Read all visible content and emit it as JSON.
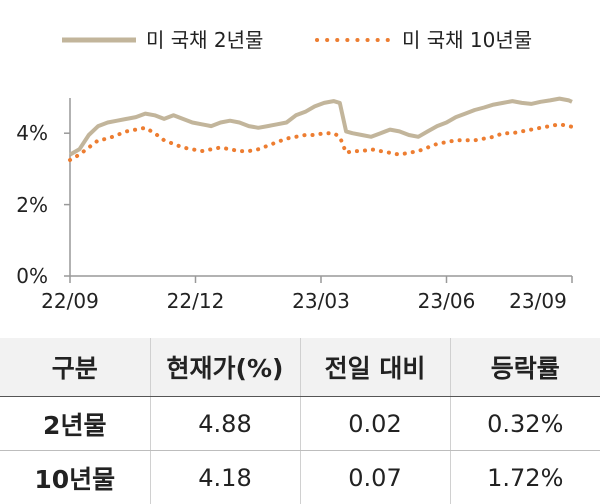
{
  "chart_data": {
    "type": "line",
    "ylim": [
      0,
      5
    ],
    "y_ticks": [
      "0%",
      "2%",
      "4%"
    ],
    "x_ticks": [
      "22/09",
      "22/12",
      "23/03",
      "23/06",
      "23/09"
    ],
    "legend_position": "top",
    "grid": false,
    "series": [
      {
        "name": "미 국채 2년물",
        "style": "solid",
        "color": "#c2b59b",
        "points": [
          [
            0,
            3.4
          ],
          [
            3,
            3.55
          ],
          [
            6,
            3.95
          ],
          [
            9,
            4.2
          ],
          [
            12,
            4.3
          ],
          [
            15,
            4.35
          ],
          [
            18,
            4.4
          ],
          [
            21,
            4.45
          ],
          [
            24,
            4.55
          ],
          [
            27,
            4.5
          ],
          [
            30,
            4.4
          ],
          [
            33,
            4.5
          ],
          [
            36,
            4.4
          ],
          [
            39,
            4.3
          ],
          [
            42,
            4.25
          ],
          [
            45,
            4.2
          ],
          [
            48,
            4.3
          ],
          [
            51,
            4.35
          ],
          [
            54,
            4.3
          ],
          [
            57,
            4.2
          ],
          [
            60,
            4.15
          ],
          [
            63,
            4.2
          ],
          [
            66,
            4.25
          ],
          [
            69,
            4.3
          ],
          [
            72,
            4.5
          ],
          [
            75,
            4.6
          ],
          [
            78,
            4.75
          ],
          [
            81,
            4.85
          ],
          [
            84,
            4.9
          ],
          [
            86,
            4.85
          ],
          [
            88,
            4.05
          ],
          [
            90,
            4.0
          ],
          [
            93,
            3.95
          ],
          [
            96,
            3.9
          ],
          [
            99,
            4.0
          ],
          [
            102,
            4.1
          ],
          [
            105,
            4.05
          ],
          [
            108,
            3.95
          ],
          [
            111,
            3.9
          ],
          [
            114,
            4.05
          ],
          [
            117,
            4.2
          ],
          [
            120,
            4.3
          ],
          [
            123,
            4.45
          ],
          [
            126,
            4.55
          ],
          [
            129,
            4.65
          ],
          [
            132,
            4.72
          ],
          [
            135,
            4.8
          ],
          [
            138,
            4.85
          ],
          [
            141,
            4.9
          ],
          [
            144,
            4.85
          ],
          [
            147,
            4.82
          ],
          [
            150,
            4.88
          ],
          [
            153,
            4.92
          ],
          [
            156,
            4.97
          ],
          [
            159,
            4.92
          ],
          [
            160,
            4.88
          ]
        ]
      },
      {
        "name": "미 국채 10년물",
        "style": "dotted",
        "color": "#ed7d31",
        "points": [
          [
            0,
            3.25
          ],
          [
            3,
            3.4
          ],
          [
            6,
            3.6
          ],
          [
            9,
            3.8
          ],
          [
            12,
            3.85
          ],
          [
            15,
            3.95
          ],
          [
            18,
            4.05
          ],
          [
            21,
            4.1
          ],
          [
            24,
            4.15
          ],
          [
            27,
            4.0
          ],
          [
            30,
            3.8
          ],
          [
            33,
            3.7
          ],
          [
            36,
            3.6
          ],
          [
            39,
            3.55
          ],
          [
            42,
            3.5
          ],
          [
            45,
            3.55
          ],
          [
            48,
            3.6
          ],
          [
            51,
            3.55
          ],
          [
            54,
            3.5
          ],
          [
            57,
            3.5
          ],
          [
            60,
            3.55
          ],
          [
            63,
            3.65
          ],
          [
            66,
            3.75
          ],
          [
            69,
            3.85
          ],
          [
            72,
            3.9
          ],
          [
            75,
            3.95
          ],
          [
            78,
            3.95
          ],
          [
            81,
            4.0
          ],
          [
            84,
            4.0
          ],
          [
            86,
            3.9
          ],
          [
            88,
            3.45
          ],
          [
            90,
            3.5
          ],
          [
            93,
            3.5
          ],
          [
            96,
            3.55
          ],
          [
            99,
            3.5
          ],
          [
            102,
            3.45
          ],
          [
            105,
            3.4
          ],
          [
            108,
            3.45
          ],
          [
            111,
            3.5
          ],
          [
            114,
            3.6
          ],
          [
            117,
            3.7
          ],
          [
            120,
            3.75
          ],
          [
            123,
            3.8
          ],
          [
            126,
            3.8
          ],
          [
            129,
            3.8
          ],
          [
            132,
            3.85
          ],
          [
            135,
            3.9
          ],
          [
            138,
            4.0
          ],
          [
            141,
            4.0
          ],
          [
            144,
            4.05
          ],
          [
            147,
            4.1
          ],
          [
            150,
            4.15
          ],
          [
            153,
            4.2
          ],
          [
            156,
            4.25
          ],
          [
            159,
            4.2
          ],
          [
            160,
            4.18
          ]
        ]
      }
    ]
  },
  "table": {
    "headers": [
      "구분",
      "현재가(%)",
      "전일 대비",
      "등락률"
    ],
    "rows": [
      [
        "2년물",
        "4.88",
        "0.02",
        "0.32%"
      ],
      [
        "10년물",
        "4.18",
        "0.07",
        "1.72%"
      ]
    ]
  }
}
